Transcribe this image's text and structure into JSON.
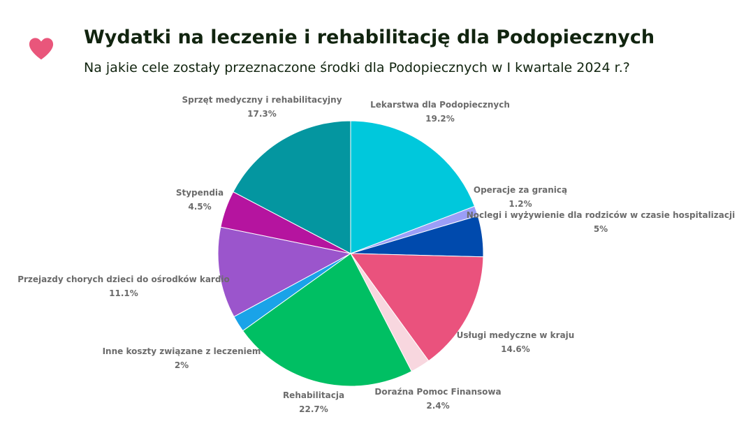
{
  "header": {
    "title": "Wydatki na leczenie i rehabilitację dla Podopiecznych",
    "subtitle": "Na jakie cele zostały przeznaczone środki dla Podopiecznych w I kwartale 2024 r.?",
    "icon": "heart-icon",
    "icon_color": "#e9567b"
  },
  "chart_data": {
    "type": "pie",
    "title": "",
    "slices": [
      {
        "label": "Lekarstwa dla Podopiecznych",
        "value": 19.2,
        "value_label": "19.2%",
        "color": "#00c8dc"
      },
      {
        "label": "Operacje za granicą",
        "value": 1.2,
        "value_label": "1.2%",
        "color": "#9b9ef7"
      },
      {
        "label": "Noclegi i wyżywienie dla rodziców w czasie hospitalizacji",
        "value": 5.0,
        "value_label": "5%",
        "color": "#004aad"
      },
      {
        "label": "Usługi medyczne w kraju",
        "value": 14.6,
        "value_label": "14.6%",
        "color": "#ea527d"
      },
      {
        "label": "Doraźna Pomoc Finansowa",
        "value": 2.4,
        "value_label": "2.4%",
        "color": "#f8d7df"
      },
      {
        "label": "Rehabilitacja",
        "value": 22.7,
        "value_label": "22.7%",
        "color": "#00bf63"
      },
      {
        "label": "Inne koszty związane z leczeniem",
        "value": 2.0,
        "value_label": "2%",
        "color": "#1aa3e8"
      },
      {
        "label": "Przejazdy chorych dzieci do ośrodków kardio",
        "value": 11.1,
        "value_label": "11.1%",
        "color": "#9b55cc"
      },
      {
        "label": "Stypendia",
        "value": 4.5,
        "value_label": "4.5%",
        "color": "#b5149f"
      },
      {
        "label": "Sprzęt medyczny i rehabilitacyjny",
        "value": 17.3,
        "value_label": "17.3%",
        "color": "#0496a0"
      }
    ]
  }
}
